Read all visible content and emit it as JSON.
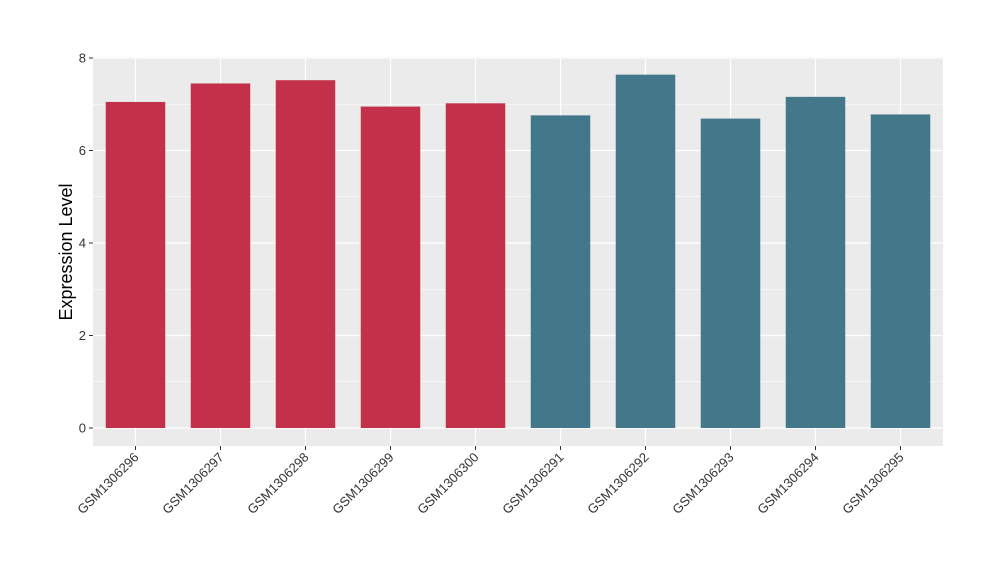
{
  "chart_data": {
    "type": "bar",
    "title": "",
    "xlabel": "",
    "ylabel": "Expression Level",
    "ylim": [
      0,
      8
    ],
    "yticks": [
      0,
      2,
      4,
      6,
      8
    ],
    "grid": true,
    "legend": "none",
    "categories": [
      "GSM1306296",
      "GSM1306297",
      "GSM1306298",
      "GSM1306299",
      "GSM1306300",
      "GSM1306291",
      "GSM1306292",
      "GSM1306293",
      "GSM1306294",
      "GSM1306295"
    ],
    "values": [
      7.05,
      7.45,
      7.52,
      6.95,
      7.02,
      6.76,
      7.64,
      6.69,
      7.16,
      6.78
    ],
    "bar_colors": [
      "#c33049",
      "#c33049",
      "#c33049",
      "#c33049",
      "#c33049",
      "#43788a",
      "#43788a",
      "#43788a",
      "#43788a",
      "#43788a"
    ]
  },
  "colors": {
    "panel_background": "#ebebeb",
    "grid_major": "#ffffff",
    "group_a": "#c33049",
    "group_b": "#43788a"
  }
}
